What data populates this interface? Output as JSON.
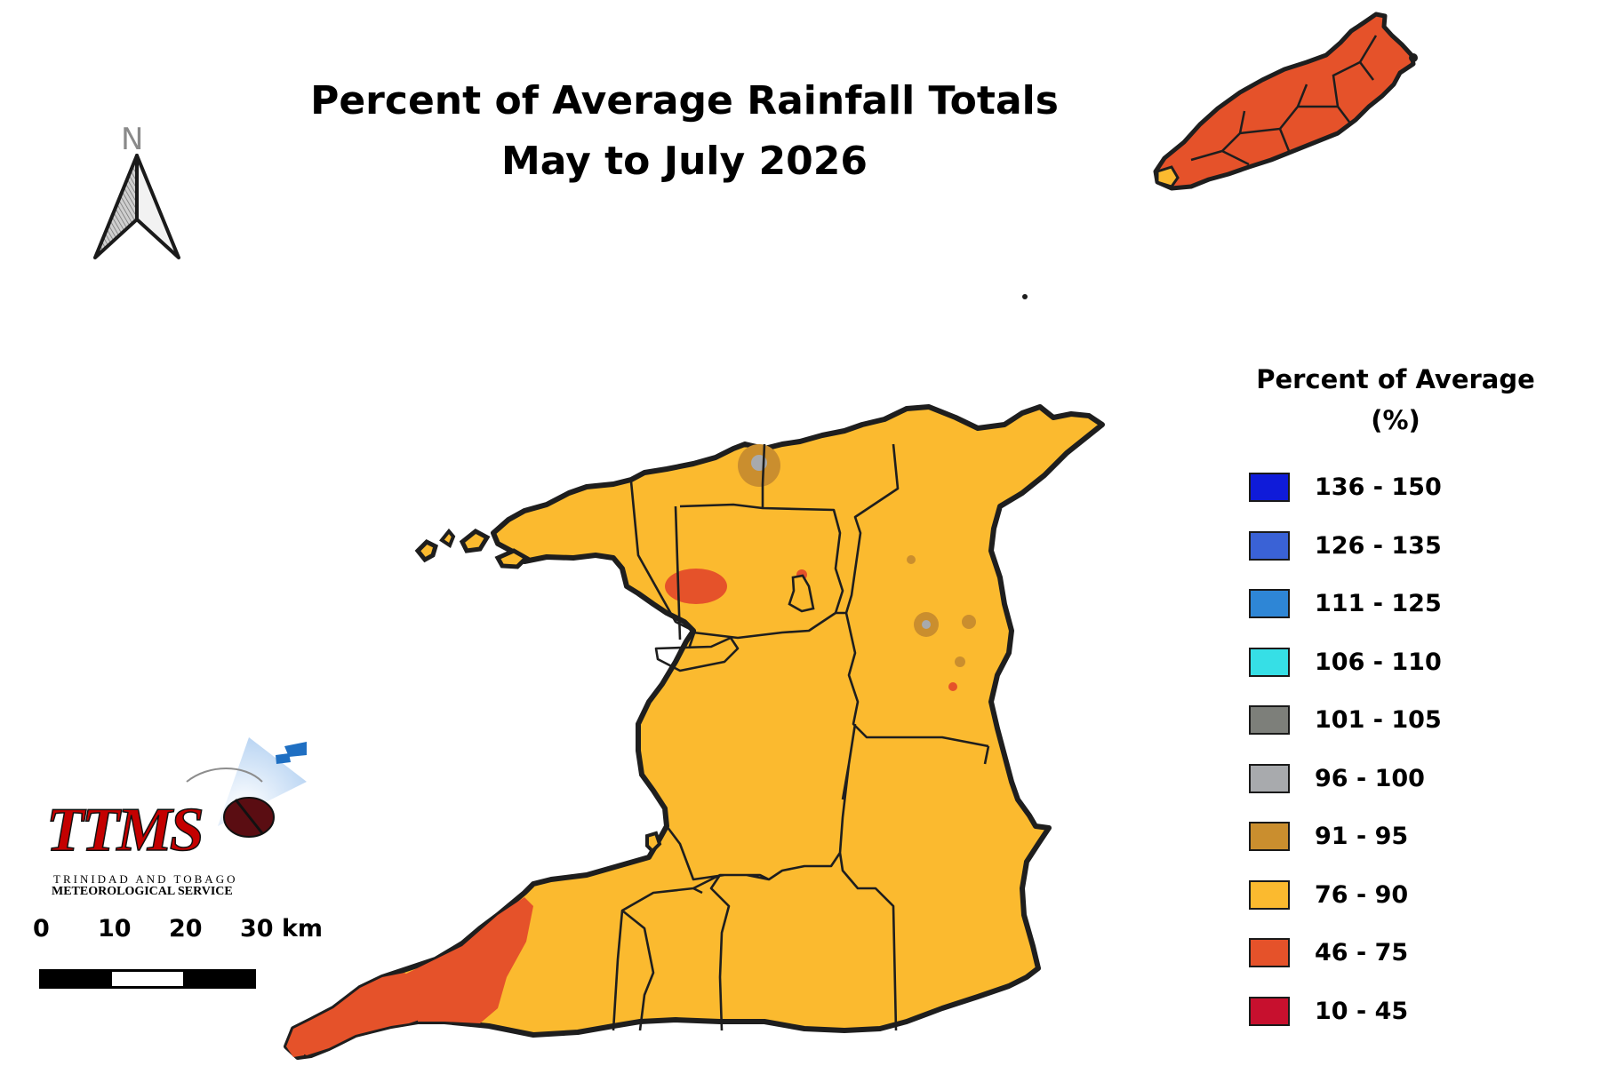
{
  "title": {
    "line1": "Percent of Average Rainfall Totals",
    "line2": "May to July 2026"
  },
  "north_arrow": {
    "letter": "N",
    "icon": "north-arrow-icon"
  },
  "legend": {
    "title_line1": "Percent of Average",
    "title_line2": "(%)",
    "items": [
      {
        "label": "136 - 150",
        "color": "#0f1bd9"
      },
      {
        "label": "126 - 135",
        "color": "#3a62d6"
      },
      {
        "label": "111 - 125",
        "color": "#2e86d6"
      },
      {
        "label": "106 - 110",
        "color": "#36dfe6"
      },
      {
        "label": "101 - 105",
        "color": "#7d7f7a"
      },
      {
        "label": "96 - 100",
        "color": "#a8aaad"
      },
      {
        "label": "91 - 95",
        "color": "#ca8e2e"
      },
      {
        "label": "76 - 90",
        "color": "#fbba2f"
      },
      {
        "label": "46 - 75",
        "color": "#e5522a"
      },
      {
        "label": "10 - 45",
        "color": "#c7102e"
      }
    ]
  },
  "logo": {
    "name": "TTMS",
    "line1": "TRINIDAD AND TOBAGO",
    "line2": "METEOROLOGICAL SERVICE"
  },
  "scale_bar": {
    "ticks": [
      "0",
      "10",
      "20",
      "30 km"
    ]
  },
  "colors": {
    "base_fill": "#fbba2f",
    "dry_fill": "#e5522a",
    "near_normal_fill": "#ca8e2e",
    "normal_fill": "#a8aaad",
    "outline": "#1e1e1e"
  }
}
